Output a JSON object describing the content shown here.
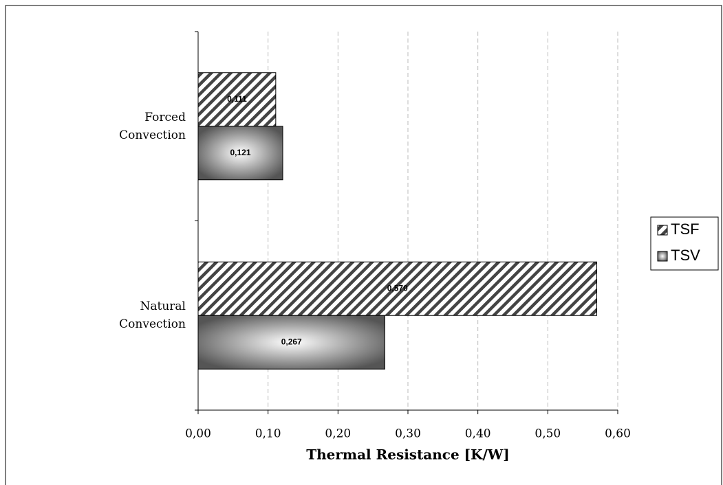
{
  "chart_data": {
    "type": "bar",
    "orientation": "horizontal",
    "x_label": "Thermal Resistance [K/W]",
    "categories": [
      "Forced Convection",
      "Natural Convection"
    ],
    "series": [
      {
        "name": "TSF",
        "color": "#444444",
        "values": [
          0.111,
          0.57
        ],
        "value_labels": [
          "0,111",
          "0,570"
        ]
      },
      {
        "name": "TSV",
        "color": "#555555",
        "values": [
          0.121,
          0.267
        ],
        "value_labels": [
          "0,121",
          "0,267"
        ]
      }
    ],
    "xlim": [
      0,
      0.6
    ],
    "xticks": [
      {
        "value": 0,
        "label": "0,00"
      },
      {
        "value": 0.1,
        "label": "0,10"
      },
      {
        "value": 0.2,
        "label": "0,20"
      },
      {
        "value": 0.3,
        "label": "0,30"
      },
      {
        "value": 0.4,
        "label": "0,40"
      },
      {
        "value": 0.5,
        "label": "0,50"
      },
      {
        "value": 0.6,
        "label": "0,60"
      }
    ],
    "grid": true,
    "legend": "right"
  }
}
